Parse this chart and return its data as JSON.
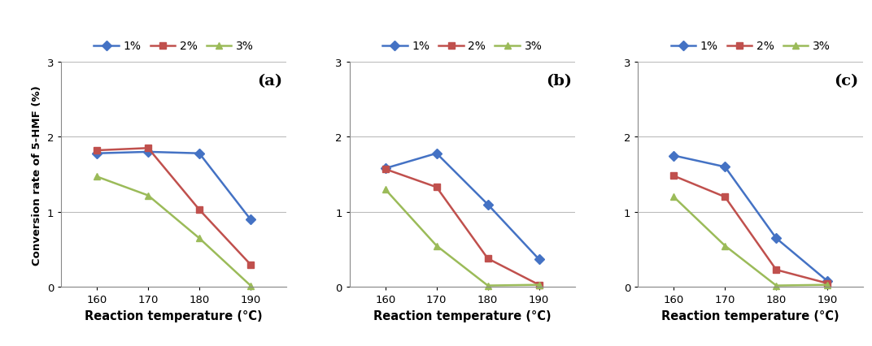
{
  "x": [
    160,
    170,
    180,
    190
  ],
  "panels": [
    {
      "label": "(a)",
      "series": {
        "1%": [
          1.78,
          1.8,
          1.78,
          0.9
        ],
        "2%": [
          1.82,
          1.85,
          1.03,
          0.3
        ],
        "3%": [
          1.47,
          1.22,
          0.65,
          0.02
        ]
      }
    },
    {
      "label": "(b)",
      "series": {
        "1%": [
          1.58,
          1.78,
          1.1,
          0.37
        ],
        "2%": [
          1.57,
          1.33,
          0.38,
          0.03
        ],
        "3%": [
          1.3,
          0.55,
          0.02,
          0.03
        ]
      }
    },
    {
      "label": "(c)",
      "series": {
        "1%": [
          1.75,
          1.6,
          0.65,
          0.08
        ],
        "2%": [
          1.48,
          1.2,
          0.23,
          0.05
        ],
        "3%": [
          1.2,
          0.55,
          0.02,
          0.03
        ]
      }
    }
  ],
  "colors": {
    "1%": "#4472C4",
    "2%": "#C0504D",
    "3%": "#9BBB59"
  },
  "markers": {
    "1%": "D",
    "2%": "s",
    "3%": "^"
  },
  "ylabel": "Conversion rate of 5-HMF (%)",
  "xlabel": "Reaction temperature (°C)",
  "ylim": [
    0,
    3
  ],
  "yticks": [
    0,
    1,
    2,
    3
  ],
  "xticks": [
    160,
    170,
    180,
    190
  ],
  "legend_labels": [
    "1%",
    "2%",
    "3%"
  ],
  "linewidth": 1.8,
  "markersize": 6,
  "grid_color": "#BBBBBB",
  "spine_color": "#888888"
}
